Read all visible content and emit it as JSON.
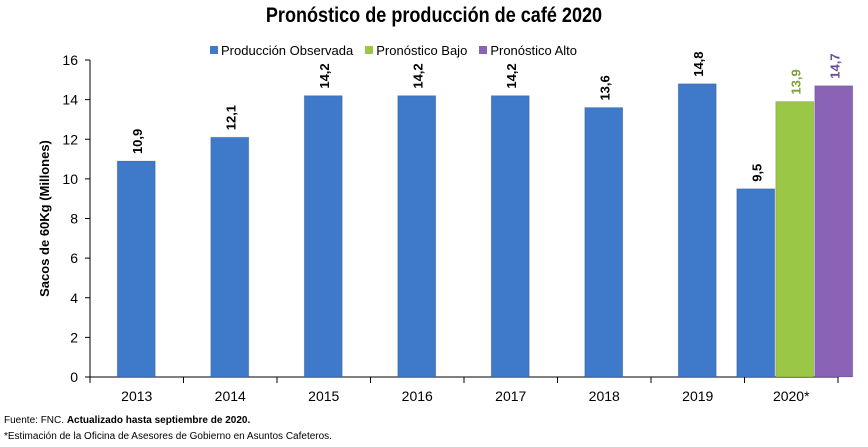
{
  "chart_data": {
    "type": "bar",
    "title": "Pronóstico de producción de café 2020",
    "ylabel": "Sacos de 60Kg (Millones)",
    "xlabel": "",
    "ylim": [
      0,
      16
    ],
    "yticks": [
      0,
      2,
      4,
      6,
      8,
      10,
      12,
      14,
      16
    ],
    "categories": [
      "2013",
      "2014",
      "2015",
      "2016",
      "2017",
      "2018",
      "2019",
      "2020*"
    ],
    "series": [
      {
        "name": "Producción Observada",
        "color": "#3f79c9",
        "values": [
          10.9,
          12.1,
          14.2,
          14.2,
          14.2,
          13.6,
          14.8,
          9.5
        ],
        "labels": [
          "10,9",
          "12,1",
          "14,2",
          "14,2",
          "14,2",
          "13,6",
          "14,8",
          "9,5"
        ],
        "label_color": "#000000"
      },
      {
        "name": "Pronóstico Bajo",
        "color": "#9bc747",
        "values": [
          null,
          null,
          null,
          null,
          null,
          null,
          null,
          13.9
        ],
        "labels": [
          null,
          null,
          null,
          null,
          null,
          null,
          null,
          "13,9"
        ],
        "label_color": "#7d9f3a"
      },
      {
        "name": "Pronóstico Alto",
        "color": "#8a62b6",
        "values": [
          null,
          null,
          null,
          null,
          null,
          null,
          null,
          14.7
        ],
        "labels": [
          null,
          null,
          null,
          null,
          null,
          null,
          null,
          "14,7"
        ],
        "label_color": "#6b4a9a"
      }
    ],
    "legend_position": "top",
    "grid": false
  },
  "footer": {
    "source_prefix": "Fuente: FNC. ",
    "source_bold": "Actualizado hasta septiembre de 2020.",
    "note": "*Estimación de la Oficina de Asesores de Gobierno en Asuntos Cafeteros."
  }
}
